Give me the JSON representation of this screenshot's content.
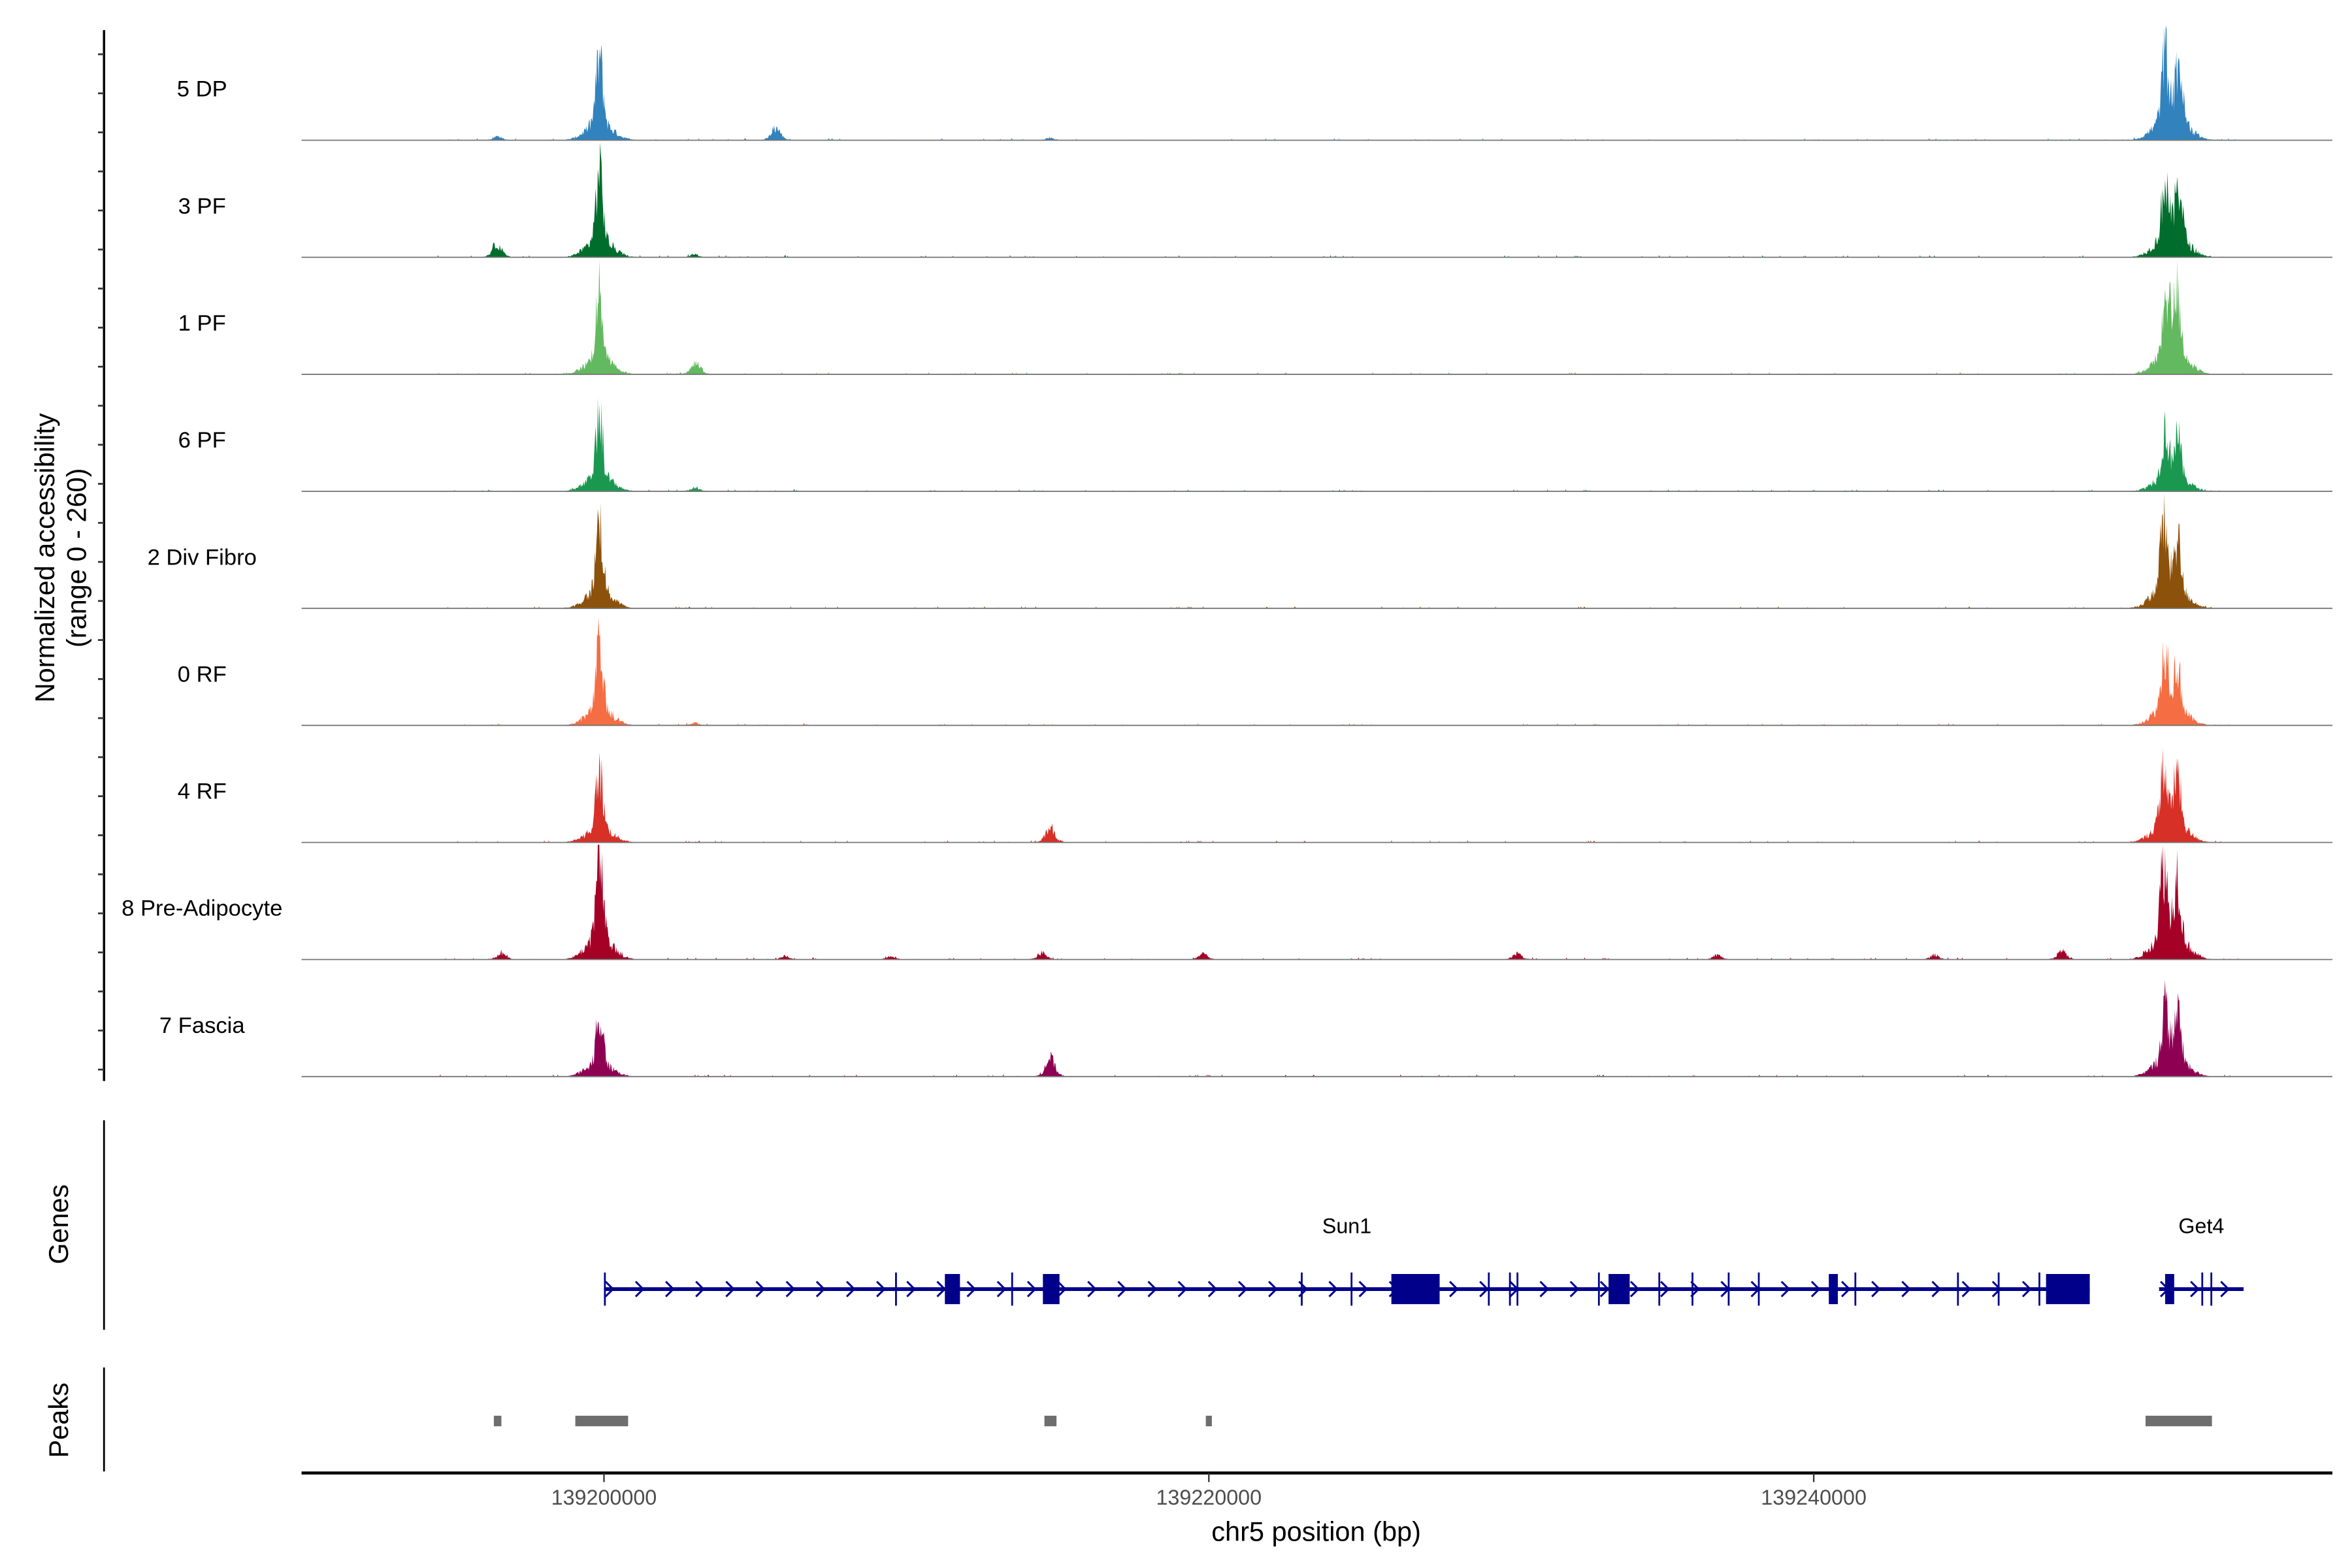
{
  "chart_data": {
    "type": "area",
    "title": "",
    "ylabel": [
      "Normalized accessibility",
      "(range 0 - 260)"
    ],
    "xlabel": "chr5 position (bp)",
    "ylim": [
      0,
      260
    ],
    "xlim": [
      139190000,
      139257150
    ],
    "xticks": [
      139200000,
      139220000,
      139240000
    ],
    "xtick_labels": [
      "139200000",
      "139220000",
      "139240000"
    ],
    "tracks": [
      {
        "name": "5 DP",
        "color": "#3182bd",
        "peaks": [
          [
            139199850,
            178
          ],
          [
            139251620,
            171
          ],
          [
            139252070,
            150
          ],
          [
            139205690,
            27
          ],
          [
            139196500,
            8
          ],
          [
            139214750,
            5
          ]
        ]
      },
      {
        "name": "3 PF",
        "color": "#006d2c",
        "peaks": [
          [
            139199850,
            188
          ],
          [
            139251620,
            150
          ],
          [
            139252070,
            147
          ],
          [
            139196460,
            30
          ],
          [
            139203000,
            6
          ]
        ]
      },
      {
        "name": "1 PF",
        "color": "#63b95f",
        "peaks": [
          [
            139199850,
            178
          ],
          [
            139251670,
            160
          ],
          [
            139252020,
            154
          ],
          [
            139203040,
            25
          ]
        ]
      },
      {
        "name": "6 PF",
        "color": "#1a9850",
        "peaks": [
          [
            139199850,
            164
          ],
          [
            139251620,
            117
          ],
          [
            139252020,
            110
          ],
          [
            139203000,
            8
          ]
        ]
      },
      {
        "name": "2 Div Fibro",
        "color": "#8c510a",
        "peaks": [
          [
            139199850,
            190
          ],
          [
            139251570,
            174
          ],
          [
            139252020,
            134
          ]
        ]
      },
      {
        "name": "0 RF",
        "color": "#f46d43",
        "peaks": [
          [
            139199850,
            170
          ],
          [
            139251620,
            160
          ],
          [
            139252020,
            110
          ],
          [
            139203000,
            6
          ]
        ]
      },
      {
        "name": "4 RF",
        "color": "#d73027",
        "peaks": [
          [
            139199850,
            154
          ],
          [
            139251570,
            147
          ],
          [
            139252020,
            134
          ],
          [
            139214760,
            33
          ]
        ]
      },
      {
        "name": "8 Pre-Adipocyte",
        "color": "#a50026",
        "peaks": [
          [
            139199850,
            230
          ],
          [
            139251570,
            194
          ],
          [
            139252020,
            164
          ],
          [
            139196600,
            14
          ],
          [
            139214500,
            14
          ],
          [
            139219800,
            12
          ],
          [
            139230200,
            12
          ],
          [
            139248200,
            18
          ],
          [
            139244000,
            10
          ],
          [
            139236800,
            10
          ],
          [
            139206000,
            8
          ],
          [
            139209500,
            8
          ]
        ]
      },
      {
        "name": "7 Fascia",
        "color": "#8e0152",
        "peaks": [
          [
            139199850,
            137
          ],
          [
            139251620,
            134
          ],
          [
            139252020,
            124
          ],
          [
            139214760,
            40
          ]
        ]
      }
    ],
    "genes": [
      {
        "name": "Sun1",
        "start": 139200000,
        "end": 139249127,
        "strand": "+",
        "exons": [
          [
            139200000,
            139200050
          ],
          [
            139209626,
            139209676
          ],
          [
            139211272,
            139211771
          ],
          [
            139213466,
            139213516
          ],
          [
            139214513,
            139215062
          ],
          [
            139223042,
            139223092
          ],
          [
            139224688,
            139224738
          ],
          [
            139226035,
            139227631
          ],
          [
            139229227,
            139229277
          ],
          [
            139229925,
            139229975
          ],
          [
            139230174,
            139230224
          ],
          [
            139232867,
            139232917
          ],
          [
            139233216,
            139233915
          ],
          [
            139234864,
            139234914
          ],
          [
            139235961,
            139236011
          ],
          [
            139237158,
            139237208
          ],
          [
            139238154,
            139238204
          ],
          [
            139240499,
            139240798
          ],
          [
            139241347,
            139241397
          ],
          [
            139244739,
            139244789
          ],
          [
            139246085,
            139246135
          ],
          [
            139247432,
            139247482
          ],
          [
            139247681,
            139249127
          ]
        ]
      },
      {
        "name": "Get4",
        "start": 139251420,
        "end": 139254213,
        "strand": "+",
        "exons": [
          [
            139251620,
            139251919
          ],
          [
            139252817,
            139252867
          ],
          [
            139253117,
            139253167
          ]
        ]
      }
    ],
    "peak_regions": [
      [
        139196359,
        139196608
      ],
      [
        139199052,
        139200798
      ],
      [
        139214563,
        139214962
      ],
      [
        139219900,
        139220100
      ],
      [
        139250972,
        139253167
      ]
    ],
    "panel_labels": {
      "genes": "Genes",
      "peaks": "Peaks"
    },
    "gene_color": "#00008b",
    "peak_color": "#6e6e6e"
  }
}
